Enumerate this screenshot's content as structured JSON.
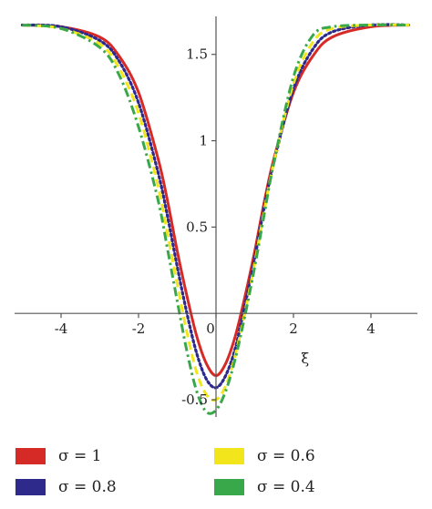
{
  "chart_data": {
    "type": "line",
    "title": "",
    "xlabel": "ξ",
    "ylabel": "",
    "xlim": [
      -5.2,
      5.2
    ],
    "ylim": [
      -0.6,
      1.72
    ],
    "xticks": [
      -4,
      -2,
      0,
      2,
      4
    ],
    "yticks": [
      -0.5,
      0.5,
      1,
      1.5
    ],
    "xtick_labels": [
      "-4",
      "-2",
      "0",
      "2",
      "4"
    ],
    "ytick_labels": [
      "-0.5",
      "0.5",
      "1",
      "1.5"
    ],
    "grid": false,
    "legend_position": "bottom",
    "x": [
      -5,
      -4,
      -3,
      -2.5,
      -2,
      -1.5,
      -1.25,
      -1,
      -0.75,
      -0.5,
      -0.25,
      0,
      0.25,
      0.5,
      0.75,
      1,
      1.25,
      1.5,
      2,
      2.5,
      3,
      4,
      5
    ],
    "series": [
      {
        "name": "σ = 1",
        "style": "solid",
        "color": "#d62a26",
        "values": [
          1.67,
          1.66,
          1.6,
          1.49,
          1.28,
          0.9,
          0.65,
          0.36,
          0.1,
          -0.13,
          -0.29,
          -0.36,
          -0.29,
          -0.13,
          0.1,
          0.36,
          0.65,
          0.9,
          1.28,
          1.49,
          1.6,
          1.66,
          1.67
        ]
      },
      {
        "name": "σ = 0.8",
        "style": "dotted",
        "color": "#2e2a8c",
        "values": [
          1.67,
          1.66,
          1.58,
          1.46,
          1.22,
          0.82,
          0.56,
          0.27,
          0.0,
          -0.23,
          -0.38,
          -0.43,
          -0.36,
          -0.2,
          0.05,
          0.32,
          0.62,
          0.88,
          1.3,
          1.53,
          1.63,
          1.67,
          1.67
        ]
      },
      {
        "name": "σ = 0.6",
        "style": "dash",
        "color": "#f2e51b",
        "values": [
          1.67,
          1.65,
          1.56,
          1.42,
          1.16,
          0.74,
          0.46,
          0.17,
          -0.11,
          -0.34,
          -0.47,
          -0.5,
          -0.42,
          -0.24,
          0.01,
          0.29,
          0.6,
          0.88,
          1.33,
          1.57,
          1.65,
          1.67,
          1.67
        ]
      },
      {
        "name": "σ = 0.4",
        "style": "dashdot",
        "color": "#38a84a",
        "values": [
          1.67,
          1.65,
          1.54,
          1.38,
          1.08,
          0.66,
          0.37,
          0.07,
          -0.22,
          -0.45,
          -0.57,
          -0.56,
          -0.45,
          -0.26,
          -0.01,
          0.27,
          0.58,
          0.88,
          1.37,
          1.61,
          1.66,
          1.67,
          1.67
        ]
      }
    ]
  }
}
